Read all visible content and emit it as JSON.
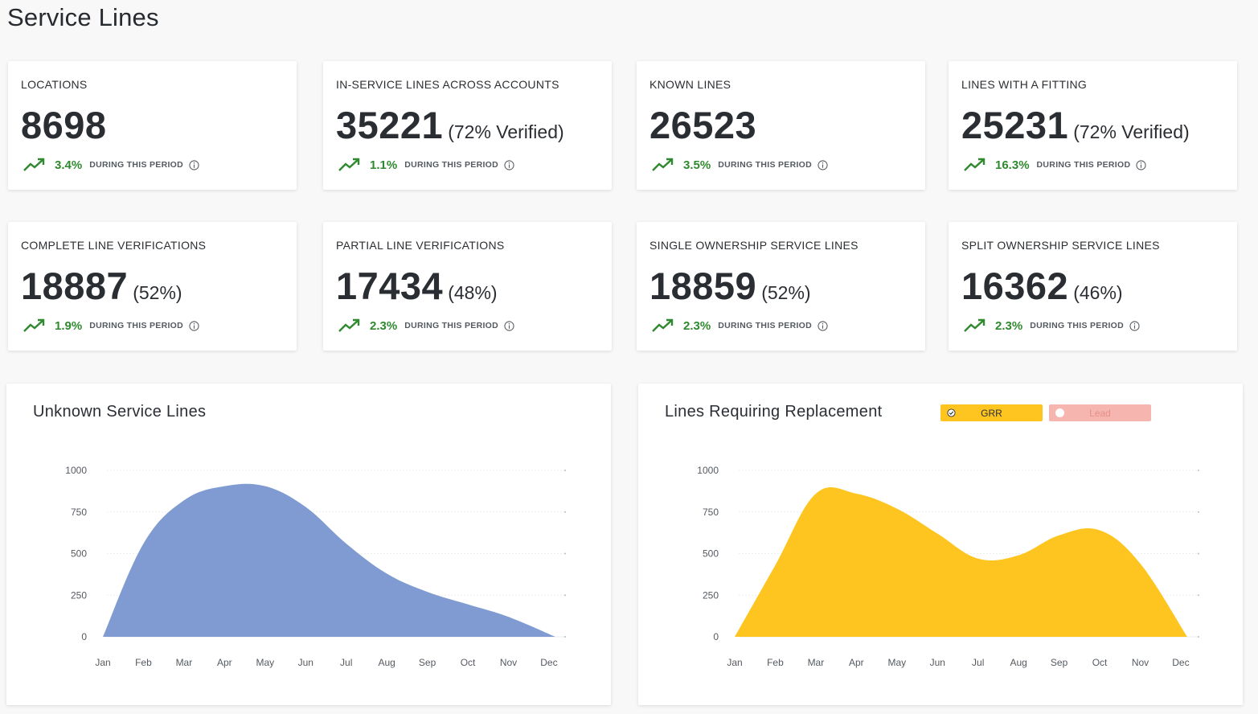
{
  "page": {
    "title": "Service Lines"
  },
  "colors": {
    "trend_green": "#2f8a2f",
    "unknown_fill": "#7f9bd1",
    "grr_fill": "#fec520",
    "lead_fill": "#f7b5b0",
    "axis_text": "#555a60"
  },
  "icons": {
    "trend": "trending-up-icon",
    "info": "info-circle-icon",
    "check": "check-circle-icon"
  },
  "stats": [
    {
      "label": "LOCATIONS",
      "value": "8698",
      "suffix": "",
      "trend": "3.4%",
      "trend_text": "DURING THIS PERIOD"
    },
    {
      "label": "IN-SERVICE LINES ACROSS ACCOUNTS",
      "value": "35221",
      "suffix": "(72% Verified)",
      "trend": "1.1%",
      "trend_text": "DURING THIS PERIOD"
    },
    {
      "label": "KNOWN LINES",
      "value": "26523",
      "suffix": "",
      "trend": "3.5%",
      "trend_text": "DURING THIS PERIOD"
    },
    {
      "label": "LINES WITH A FITTING",
      "value": "25231",
      "suffix": "(72% Verified)",
      "trend": "16.3%",
      "trend_text": "DURING THIS PERIOD"
    },
    {
      "label": "COMPLETE LINE VERIFICATIONS",
      "value": "18887",
      "suffix": "(52%)",
      "trend": "1.9%",
      "trend_text": "DURING THIS PERIOD"
    },
    {
      "label": "PARTIAL LINE VERIFICATIONS",
      "value": "17434",
      "suffix": "(48%)",
      "trend": "2.3%",
      "trend_text": "DURING THIS PERIOD"
    },
    {
      "label": "SINGLE OWNERSHIP SERVICE LINES",
      "value": "18859",
      "suffix": "(52%)",
      "trend": "2.3%",
      "trend_text": "DURING THIS PERIOD"
    },
    {
      "label": "SPLIT OWNERSHIP SERVICE LINES",
      "value": "16362",
      "suffix": "(46%)",
      "trend": "2.3%",
      "trend_text": "DURING THIS PERIOD"
    }
  ],
  "chart_data": [
    {
      "type": "area",
      "title": "Unknown Service Lines",
      "categories": [
        "Jan",
        "Feb",
        "Mar",
        "Apr",
        "May",
        "Jun",
        "Jul",
        "Aug",
        "Sep",
        "Oct",
        "Nov",
        "Dec"
      ],
      "series": [
        {
          "name": "Unknown",
          "values": [
            0,
            560,
            820,
            905,
            905,
            780,
            560,
            380,
            270,
            195,
            120,
            0
          ]
        }
      ],
      "yticks": [
        0,
        250,
        500,
        750,
        1000
      ],
      "ylim": [
        0,
        1000
      ],
      "legend": []
    },
    {
      "type": "area",
      "title": "Lines Requiring Replacement",
      "categories": [
        "Jan",
        "Feb",
        "Mar",
        "Apr",
        "May",
        "Jun",
        "Jul",
        "Aug",
        "Sep",
        "Oct",
        "Nov",
        "Dec"
      ],
      "series": [
        {
          "name": "GRR",
          "values": [
            0,
            430,
            860,
            860,
            770,
            620,
            470,
            490,
            610,
            640,
            440,
            0
          ]
        }
      ],
      "yticks": [
        0,
        250,
        500,
        750,
        1000
      ],
      "ylim": [
        0,
        1000
      ],
      "legend": [
        {
          "label": "GRR",
          "selected": true
        },
        {
          "label": "Lead",
          "selected": false
        }
      ]
    }
  ]
}
